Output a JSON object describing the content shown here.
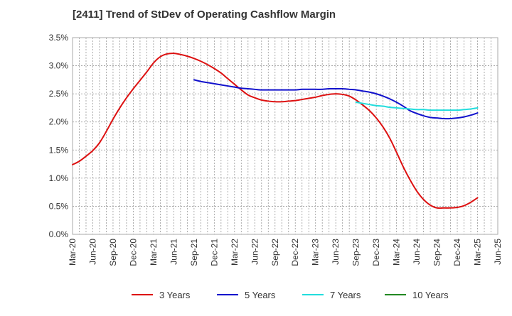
{
  "chart_data": {
    "type": "line",
    "title": "[2411]  Trend of StDev of Operating Cashflow Margin",
    "xlabel": "",
    "ylabel": "",
    "x_ticks": [
      "Mar-20",
      "Jun-20",
      "Sep-20",
      "Dec-20",
      "Mar-21",
      "Jun-21",
      "Sep-21",
      "Dec-21",
      "Mar-22",
      "Jun-22",
      "Sep-22",
      "Dec-22",
      "Mar-23",
      "Jun-23",
      "Sep-23",
      "Dec-23",
      "Mar-24",
      "Jun-24",
      "Sep-24",
      "Dec-24",
      "Mar-25",
      "Jun-25"
    ],
    "y_ticks": [
      "0.0%",
      "0.5%",
      "1.0%",
      "1.5%",
      "2.0%",
      "2.5%",
      "3.0%",
      "3.5%"
    ],
    "ylim": [
      0,
      3.5
    ],
    "grid": true,
    "legend_position": "bottom",
    "series": [
      {
        "name": "3 Years",
        "color": "#dd1111",
        "x": [
          "2020-03",
          "2020-04",
          "2020-05",
          "2020-06",
          "2020-07",
          "2020-08",
          "2020-09",
          "2020-10",
          "2020-11",
          "2020-12",
          "2021-01",
          "2021-02",
          "2021-03",
          "2021-04",
          "2021-05",
          "2021-06",
          "2021-07",
          "2021-08",
          "2021-09",
          "2021-10",
          "2021-11",
          "2021-12",
          "2022-01",
          "2022-02",
          "2022-03",
          "2022-04",
          "2022-05",
          "2022-06",
          "2022-07",
          "2022-08",
          "2022-09",
          "2022-10",
          "2022-11",
          "2022-12",
          "2023-01",
          "2023-02",
          "2023-03",
          "2023-04",
          "2023-05",
          "2023-06",
          "2023-07",
          "2023-08",
          "2023-09",
          "2023-10",
          "2023-11",
          "2023-12",
          "2024-01",
          "2024-02",
          "2024-03",
          "2024-04",
          "2024-05",
          "2024-06",
          "2024-07",
          "2024-08",
          "2024-09",
          "2024-10",
          "2024-11",
          "2024-12",
          "2025-01",
          "2025-02",
          "2025-03"
        ],
        "values": [
          1.24,
          1.3,
          1.39,
          1.49,
          1.63,
          1.83,
          2.05,
          2.25,
          2.43,
          2.59,
          2.74,
          2.89,
          3.05,
          3.16,
          3.21,
          3.22,
          3.2,
          3.17,
          3.13,
          3.08,
          3.02,
          2.95,
          2.87,
          2.77,
          2.67,
          2.57,
          2.48,
          2.43,
          2.39,
          2.37,
          2.36,
          2.36,
          2.37,
          2.38,
          2.4,
          2.42,
          2.44,
          2.47,
          2.49,
          2.5,
          2.49,
          2.46,
          2.39,
          2.3,
          2.2,
          2.07,
          1.91,
          1.71,
          1.46,
          1.2,
          0.97,
          0.77,
          0.62,
          0.52,
          0.47,
          0.47,
          0.47,
          0.48,
          0.51,
          0.57,
          0.65
        ]
      },
      {
        "name": "5 Years",
        "color": "#1111cc",
        "x": [
          "2021-09",
          "2021-10",
          "2021-11",
          "2021-12",
          "2022-01",
          "2022-02",
          "2022-03",
          "2022-04",
          "2022-05",
          "2022-06",
          "2022-07",
          "2022-08",
          "2022-09",
          "2022-10",
          "2022-11",
          "2022-12",
          "2023-01",
          "2023-02",
          "2023-03",
          "2023-04",
          "2023-05",
          "2023-06",
          "2023-07",
          "2023-08",
          "2023-09",
          "2023-10",
          "2023-11",
          "2023-12",
          "2024-01",
          "2024-02",
          "2024-03",
          "2024-04",
          "2024-05",
          "2024-06",
          "2024-07",
          "2024-08",
          "2024-09",
          "2024-10",
          "2024-11",
          "2024-12",
          "2025-01",
          "2025-02",
          "2025-03"
        ],
        "values": [
          2.75,
          2.72,
          2.7,
          2.68,
          2.66,
          2.64,
          2.62,
          2.6,
          2.59,
          2.58,
          2.57,
          2.57,
          2.57,
          2.57,
          2.57,
          2.57,
          2.58,
          2.58,
          2.58,
          2.58,
          2.59,
          2.59,
          2.59,
          2.58,
          2.57,
          2.55,
          2.53,
          2.5,
          2.46,
          2.41,
          2.35,
          2.28,
          2.2,
          2.15,
          2.11,
          2.08,
          2.07,
          2.06,
          2.06,
          2.07,
          2.09,
          2.12,
          2.16
        ]
      },
      {
        "name": "7 Years",
        "color": "#22dddd",
        "x": [
          "2023-09",
          "2023-10",
          "2023-11",
          "2023-12",
          "2024-01",
          "2024-02",
          "2024-03",
          "2024-04",
          "2024-05",
          "2024-06",
          "2024-07",
          "2024-08",
          "2024-09",
          "2024-10",
          "2024-11",
          "2024-12",
          "2025-01",
          "2025-02",
          "2025-03"
        ],
        "values": [
          2.35,
          2.33,
          2.31,
          2.29,
          2.28,
          2.26,
          2.25,
          2.24,
          2.23,
          2.22,
          2.22,
          2.21,
          2.21,
          2.21,
          2.21,
          2.21,
          2.22,
          2.23,
          2.25
        ]
      },
      {
        "name": "10 Years",
        "color": "#228822",
        "x": [],
        "values": []
      }
    ]
  }
}
